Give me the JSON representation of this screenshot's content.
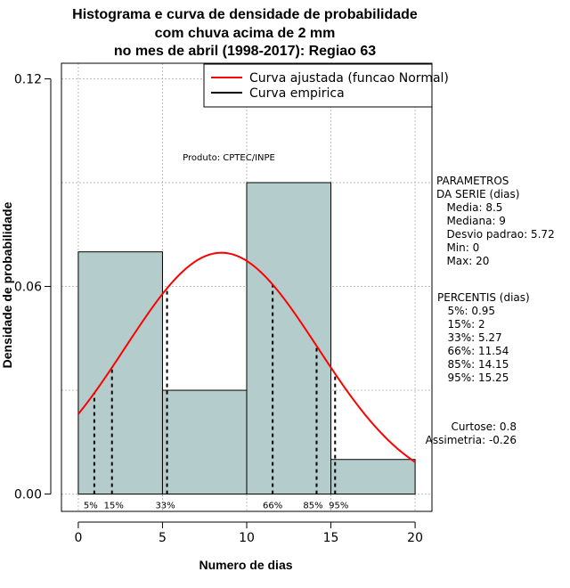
{
  "chart_data": {
    "type": "bar",
    "title_lines": [
      "Histograma e curva de densidade de probabilidade",
      "com chuva acima de 2 mm",
      "no mes de abril (1998-2017): Regiao 63"
    ],
    "xlabel": "Numero de dias",
    "ylabel": "Densidade de probabilidade",
    "xlim": [
      -1,
      21
    ],
    "ylim": [
      -0.005,
      0.1245
    ],
    "x_ticks": [
      0,
      5,
      10,
      15,
      20
    ],
    "y_ticks": [
      "0.00",
      "0.06",
      "0.12"
    ],
    "bins": [
      {
        "start": 0,
        "end": 5,
        "density": 0.07
      },
      {
        "start": 5,
        "end": 10,
        "density": 0.03
      },
      {
        "start": 10,
        "end": 15,
        "density": 0.09
      },
      {
        "start": 15,
        "end": 20,
        "density": 0.01
      }
    ],
    "normal_curve": {
      "mean": 8.5,
      "sd": 5.72,
      "x_range": [
        0,
        20
      ],
      "color": "#ff0000"
    },
    "bar_color": "#b5cccc",
    "grid": true,
    "legend": {
      "position": "top-right",
      "items": [
        {
          "label": "Curva ajustada (funcao Normal)",
          "color": "#ff0000"
        },
        {
          "label": "Curva empirica",
          "color": "#000000"
        }
      ]
    },
    "percentiles": [
      {
        "label": "5%",
        "x": 0.95
      },
      {
        "label": "15%",
        "x": 2
      },
      {
        "label": "33%",
        "x": 5.27
      },
      {
        "label": "66%",
        "x": 11.54
      },
      {
        "label": "85%",
        "x": 14.15
      },
      {
        "label": "95%",
        "x": 15.25
      }
    ],
    "product_label": "Produto: CPTEC/INPE"
  },
  "side_panel": {
    "param_lines": [
      "PARAMETROS",
      "DA SERIE (dias)",
      "   Media: 8.5",
      "   Mediana: 9",
      "   Desvio padrao: 5.72",
      "   Min: 0",
      "   Max: 20"
    ],
    "percent_lines": [
      "PERCENTIS (dias)",
      "   5%: 0.95",
      "   15%: 2",
      "   33%: 5.27",
      "   66%: 11.54",
      "   85%: 14.15",
      "   95%: 15.25"
    ],
    "stat_lines": [
      "     Curtose: 0.8",
      "Assimetria: -0.26"
    ]
  }
}
